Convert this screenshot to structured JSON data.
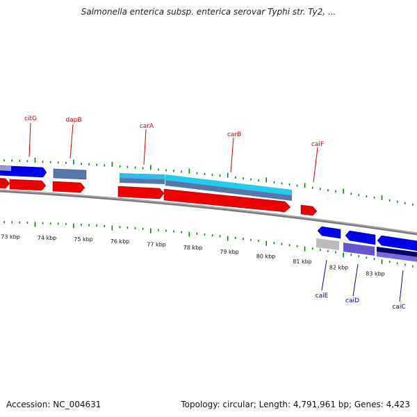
{
  "title": "Salmonella enterica subsp. enterica serovar Typhi str. Ty2, ...",
  "footer": {
    "accession": "Accession: NC_004631",
    "summary": "Topology: circular; Length: 4,791,961 bp; Genes: 4,423"
  },
  "colors": {
    "label_forward": "#cc0000",
    "label_reverse": "#0000aa",
    "tick_green": "#008800",
    "backbone": "#888888"
  },
  "scale_labels": [
    {
      "kbp": 73,
      "text": "73 kbp"
    },
    {
      "kbp": 74,
      "text": "74 kbp"
    },
    {
      "kbp": 75,
      "text": "75 kbp"
    },
    {
      "kbp": 76,
      "text": "76 kbp"
    },
    {
      "kbp": 77,
      "text": "77 kbp"
    },
    {
      "kbp": 78,
      "text": "78 kbp"
    },
    {
      "kbp": 79,
      "text": "79 kbp"
    },
    {
      "kbp": 80,
      "text": "80 kbp"
    },
    {
      "kbp": 81,
      "text": "81 kbp"
    },
    {
      "kbp": 82,
      "text": "82 kbp"
    },
    {
      "kbp": 83,
      "text": "83 kbp"
    }
  ],
  "gene_labels_top": [
    {
      "name": "citG"
    },
    {
      "name": "dapB"
    },
    {
      "name": "carA"
    },
    {
      "name": "carB"
    },
    {
      "name": "caiF"
    }
  ],
  "gene_labels_bottom": [
    {
      "name": "caiE"
    },
    {
      "name": "caiD"
    },
    {
      "name": "caiC"
    }
  ]
}
